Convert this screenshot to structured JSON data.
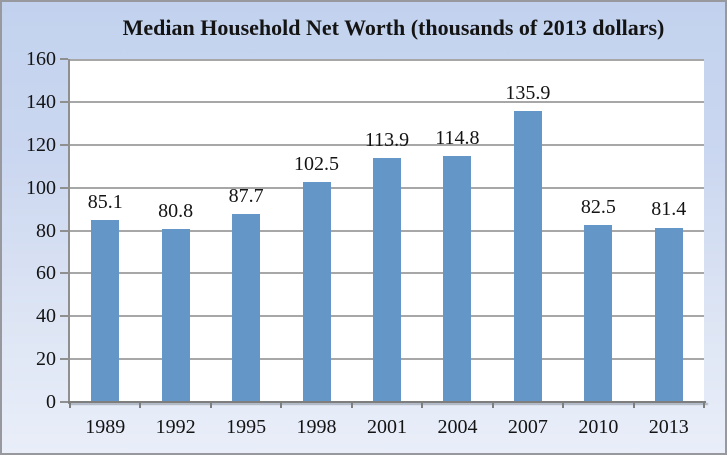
{
  "chart_data": {
    "type": "bar",
    "title": "Median Household Net Worth (thousands of 2013 dollars)",
    "categories": [
      "1989",
      "1992",
      "1995",
      "1998",
      "2001",
      "2004",
      "2007",
      "2010",
      "2013"
    ],
    "values": [
      85.1,
      80.8,
      87.7,
      102.5,
      113.9,
      114.8,
      135.9,
      82.5,
      81.4
    ],
    "data_labels": [
      "85.1",
      "80.8",
      "87.7",
      "102.5",
      "113.9",
      "114.8",
      "135.9",
      "82.5",
      "81.4"
    ],
    "xlabel": "",
    "ylabel": "",
    "ylim": [
      0,
      160
    ],
    "ytick_step": 20,
    "grid": true,
    "legend": "none",
    "colors": {
      "bar": "#6496c8",
      "plot_background": "#ffffff",
      "chart_background_top": "#c2d2ee",
      "chart_background_bottom": "#e9eef9",
      "gridline": "#a7a7a7",
      "y_axis": "#8f8f8f",
      "x_axis": "#7e7e7e",
      "text": "#141414"
    }
  }
}
